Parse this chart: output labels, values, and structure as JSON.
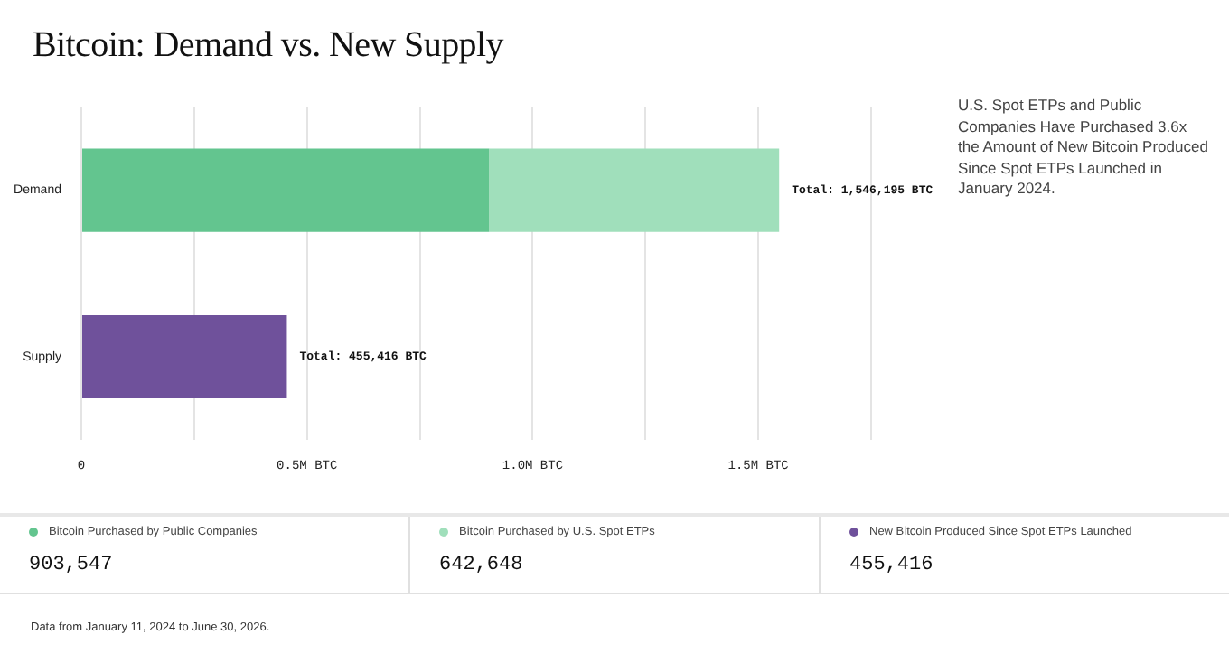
{
  "chart_data": {
    "type": "bar",
    "title": "Bitcoin: Demand vs. New Supply",
    "orientation": "horizontal",
    "stacked": true,
    "categories": [
      "Demand",
      "Supply"
    ],
    "series": [
      {
        "name": "Bitcoin Purchased by Public Companies",
        "color": "#63c58f",
        "values": [
          903547,
          null
        ]
      },
      {
        "name": "Bitcoin Purchased by U.S. Spot ETPs",
        "color": "#a0dfbb",
        "values": [
          642648,
          null
        ]
      },
      {
        "name": "New Bitcoin Produced Since Spot ETPs Launched",
        "color": "#6f519b",
        "values": [
          null,
          455416
        ]
      }
    ],
    "totals": [
      "Total: 1,546,195 BTC",
      "Total: 455,416 BTC"
    ],
    "xlim": [
      0,
      1750000
    ],
    "xticks": [
      {
        "value": 0,
        "label": "0"
      },
      {
        "value": 250000,
        "label": null
      },
      {
        "value": 500000,
        "label": "0.5M BTC"
      },
      {
        "value": 750000,
        "label": null
      },
      {
        "value": 1000000,
        "label": "1.0M BTC"
      },
      {
        "value": 1250000,
        "label": null
      },
      {
        "value": 1500000,
        "label": "1.5M BTC"
      },
      {
        "value": 1750000,
        "label": null
      }
    ],
    "grid": "x",
    "legend": "bottom",
    "annotations": [
      "U.S. Spot ETPs and Public Companies Have Purchased 3.6x the Amount of New Bitcoin Produced Since Spot ETPs Launched in January 2024.",
      "903,547",
      "642,648",
      "455,416",
      "Data from January 11, 2024 to June 30, 2026."
    ]
  }
}
